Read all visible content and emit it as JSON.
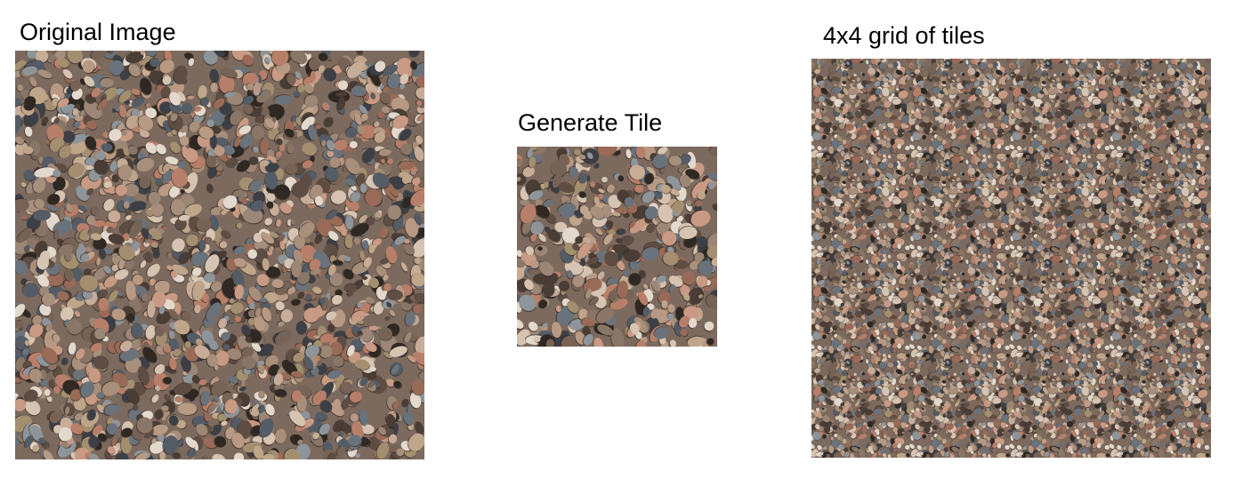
{
  "captions": {
    "original": "Original Image",
    "tile": "Generate Tile",
    "grid": "4x4 grid of tiles"
  },
  "images": {
    "original": "gravel-photo",
    "tile": "gravel-tile",
    "grid": "gravel-tiled-grid"
  },
  "grid": {
    "rows": 4,
    "cols": 4
  },
  "colors": {
    "background": "#ffffff",
    "gravel_palette": [
      "#2f2823",
      "#4a3d35",
      "#5e4d43",
      "#776356",
      "#8a7667",
      "#9c8676",
      "#a88f7c",
      "#b89a84",
      "#c7ad98",
      "#d6c3b1",
      "#c89a84",
      "#b77f69",
      "#9a6a58",
      "#e3d8cc",
      "#8e959a",
      "#6a737c",
      "#545c66",
      "#3c3f45",
      "#a38f6f",
      "#bfa58a"
    ]
  }
}
